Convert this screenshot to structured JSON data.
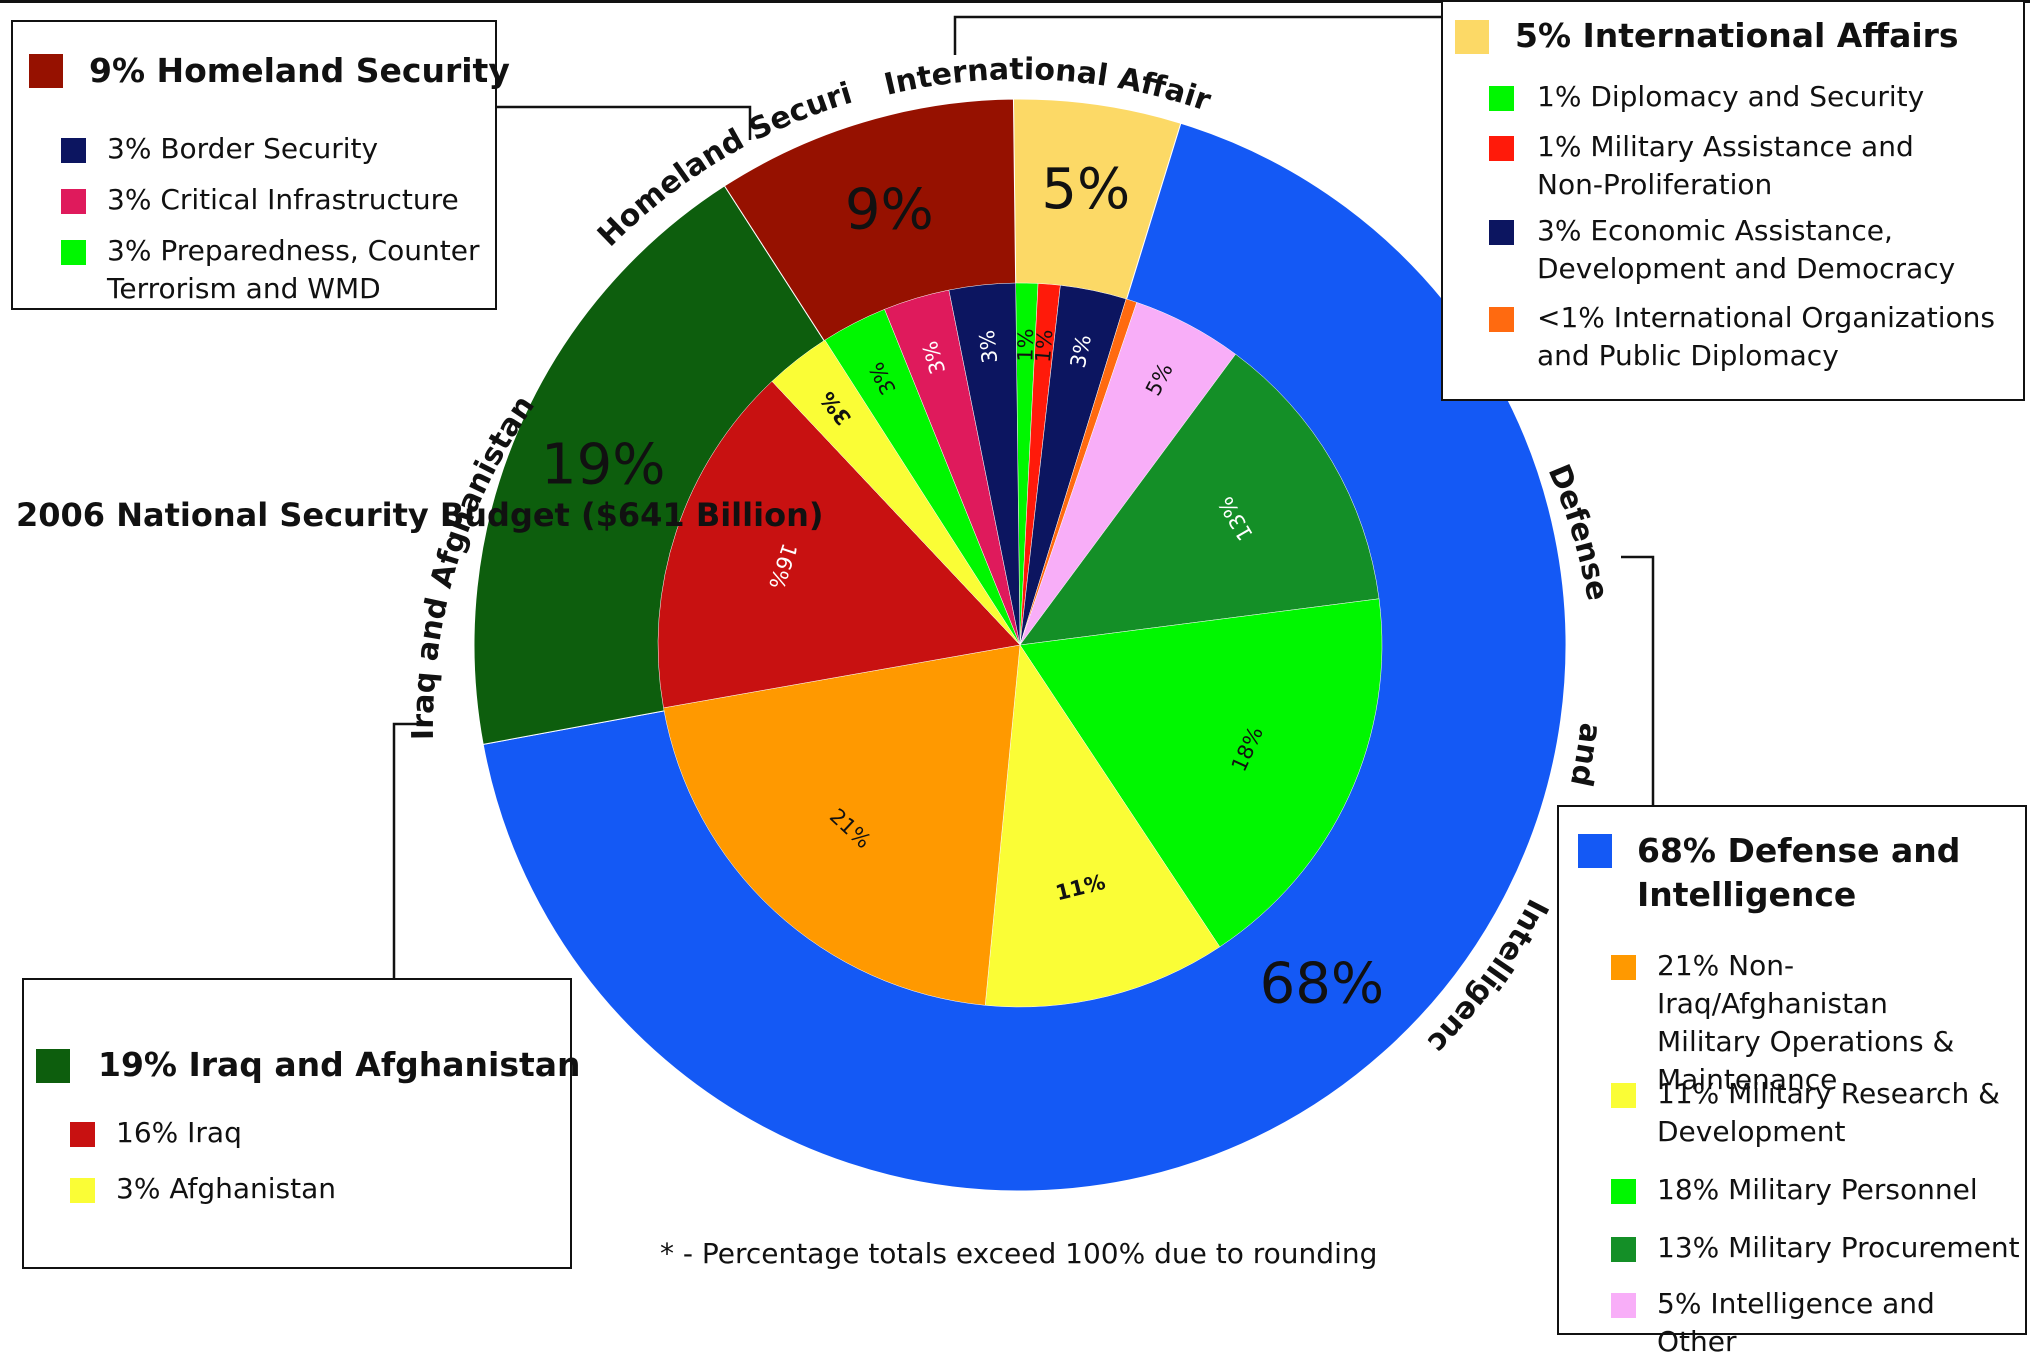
{
  "title": "2006 National Security Budget ($641 Billion)",
  "footnote": "* - Percentage totals exceed 100% due to rounding",
  "chart_data": {
    "type": "pie",
    "title": "2006 National Security Budget ($641 Billion)",
    "outer": [
      {
        "name": "International Affairs",
        "value": 5,
        "label": "5%",
        "color": "#fcd966"
      },
      {
        "name": "Defense and Intelligence",
        "value": 68,
        "label": "68%",
        "color": "#1459f5"
      },
      {
        "name": "Iraq and Afghanistan",
        "value": 19,
        "label": "19%",
        "color": "#0d5e0d"
      },
      {
        "name": "Homeland Security",
        "value": 9,
        "label": "9%",
        "color": "#961100"
      }
    ],
    "inner": [
      {
        "name": "Diplomacy and Security",
        "value": 1,
        "label": "1%",
        "color": "#00f700"
      },
      {
        "name": "Military Assistance and Non-Proliferation",
        "value": 1,
        "label": "1%",
        "color": "#ff1a0a"
      },
      {
        "name": "Economic Assistance, Development and Democracy",
        "value": 3,
        "label": "3%",
        "color": "#0c1560"
      },
      {
        "name": "International Organizations and Public Diplomacy",
        "value": 0.5,
        "label": "",
        "color": "#ff6a10"
      },
      {
        "name": "Intelligence and Other",
        "value": 5,
        "label": "5%",
        "color": "#f8aef8"
      },
      {
        "name": "Military Procurement",
        "value": 13,
        "label": "13%",
        "color": "#148f27"
      },
      {
        "name": "Military Personnel",
        "value": 18,
        "label": "18%",
        "color": "#00f700"
      },
      {
        "name": "Military Research & Development",
        "value": 11,
        "label": "11%",
        "color": "#fafd36"
      },
      {
        "name": "Non-Iraq/Afghanistan Military Operations & Maintenance",
        "value": 21,
        "label": "21%",
        "color": "#ff9900"
      },
      {
        "name": "Iraq",
        "value": 16,
        "label": "16%",
        "color": "#c81111"
      },
      {
        "name": "Afghanistan",
        "value": 3,
        "label": "3%",
        "color": "#fafd36"
      },
      {
        "name": "Preparedness, Counter Terrorism and WMD",
        "value": 3,
        "label": "3%",
        "color": "#00f700"
      },
      {
        "name": "Critical Infrastructure",
        "value": 3,
        "label": "3%",
        "color": "#df1a5c"
      },
      {
        "name": "Border Security",
        "value": 3,
        "label": "3%",
        "color": "#0c1560"
      }
    ],
    "ring_labels": [
      "International Affairs",
      "Defense",
      "and",
      "Intelligence",
      "Iraq and Afghanistan",
      "Homeland Security"
    ]
  },
  "legends": {
    "homeland": {
      "title": "9% Homeland Security",
      "color": "#961100",
      "items": [
        {
          "text": "3% Border Security",
          "color": "#0c1560"
        },
        {
          "text": "3% Critical Infrastructure",
          "color": "#df1a5c"
        },
        {
          "text": "3% Preparedness, Counter\n    Terrorism and WMD",
          "color": "#00f700"
        }
      ]
    },
    "international": {
      "title": "5% International Affairs",
      "color": "#fcd966",
      "items": [
        {
          "text": "1% Diplomacy and Security",
          "color": "#00f700"
        },
        {
          "text": "1% Military Assistance and\n     Non-Proliferation",
          "color": "#ff1a0a"
        },
        {
          "text": "3% Economic Assistance,\n    Development and Democracy",
          "color": "#0c1560"
        },
        {
          "text": "<1% International Organizations\n       and Public Diplomacy",
          "color": "#ff6a10"
        }
      ]
    },
    "iraq": {
      "title": "19% Iraq and Afghanistan",
      "color": "#0d5e0d",
      "items": [
        {
          "text": "16% Iraq",
          "color": "#c81111"
        },
        {
          "text": "3% Afghanistan",
          "color": "#fafd36"
        }
      ]
    },
    "defense": {
      "title": "68% Defense and Intelligence",
      "color": "#1459f5",
      "items": [
        {
          "text": "21% Non-Iraq/Afghanistan\nMilitary Operations &\nMaintenance",
          "color": "#ff9900"
        },
        {
          "text": "11% Military Research &\nDevelopment",
          "color": "#fafd36"
        },
        {
          "text": "18% Military Personnel",
          "color": "#00f700"
        },
        {
          "text": "13% Military Procurement",
          "color": "#148f27"
        },
        {
          "text": "5% Intelligence and Other",
          "color": "#f8aef8"
        }
      ]
    }
  }
}
